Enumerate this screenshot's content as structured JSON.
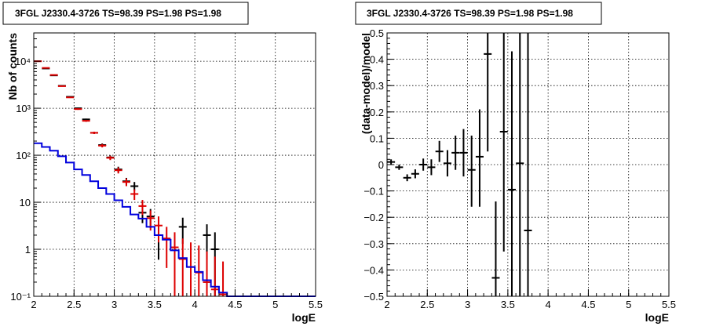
{
  "colors": {
    "black": "#000000",
    "red": "#dd0000",
    "blue": "#0000dd",
    "grid": "#000000"
  },
  "chart_data": [
    {
      "type": "scatter",
      "title": "3FGL J2330.4-3726 TS=98.39 PS=1.98 PS=1.98",
      "xlabel": "logE",
      "ylabel": "Nb of counts",
      "xlim": [
        2,
        5.5
      ],
      "ylim": [
        0.1,
        40000
      ],
      "yscale": "log",
      "grid": true,
      "x_ticks": [
        {
          "v": 2,
          "label": "2"
        },
        {
          "v": 2.5,
          "label": "2.5"
        },
        {
          "v": 3,
          "label": "3"
        },
        {
          "v": 3.5,
          "label": "3.5"
        },
        {
          "v": 4,
          "label": "4"
        },
        {
          "v": 4.5,
          "label": "4.5"
        },
        {
          "v": 5,
          "label": "5"
        },
        {
          "v": 5.5,
          "label": "5.5"
        }
      ],
      "y_ticks": [
        {
          "v": 0.1,
          "label": "10⁻¹"
        },
        {
          "v": 1,
          "label": "1"
        },
        {
          "v": 10,
          "label": "10"
        },
        {
          "v": 100,
          "label": "10²"
        },
        {
          "v": 1000,
          "label": "10³"
        },
        {
          "v": 10000,
          "label": "10⁴"
        }
      ],
      "series": [
        {
          "color": "#000000",
          "points": [
            {
              "x": 2.05,
              "y": 10000,
              "ylo": 9900,
              "yhi": 10100
            },
            {
              "x": 2.15,
              "y": 7000,
              "ylo": 6900,
              "yhi": 7100
            },
            {
              "x": 2.25,
              "y": 5000,
              "ylo": 4930,
              "yhi": 5070
            },
            {
              "x": 2.35,
              "y": 3000,
              "ylo": 2950,
              "yhi": 3050
            },
            {
              "x": 2.45,
              "y": 1750,
              "ylo": 1710,
              "yhi": 1790
            },
            {
              "x": 2.55,
              "y": 1000,
              "ylo": 970,
              "yhi": 1030
            },
            {
              "x": 2.65,
              "y": 580,
              "ylo": 560,
              "yhi": 600
            },
            {
              "x": 2.75,
              "y": 300,
              "ylo": 283,
              "yhi": 317
            },
            {
              "x": 2.85,
              "y": 165,
              "ylo": 152,
              "yhi": 178
            },
            {
              "x": 2.95,
              "y": 90,
              "ylo": 81,
              "yhi": 99
            },
            {
              "x": 3.05,
              "y": 50,
              "ylo": 43,
              "yhi": 57
            },
            {
              "x": 3.15,
              "y": 28,
              "ylo": 23,
              "yhi": 33
            },
            {
              "x": 3.25,
              "y": 22,
              "ylo": 17.5,
              "yhi": 27
            },
            {
              "x": 3.35,
              "y": 6,
              "ylo": 3.6,
              "yhi": 8.4
            },
            {
              "x": 3.45,
              "y": 5,
              "ylo": 2.8,
              "yhi": 7.2
            },
            {
              "x": 3.55,
              "y": 2,
              "ylo": 0.6,
              "yhi": 3.4
            },
            {
              "x": 3.85,
              "y": 3,
              "ylo": 1.3,
              "yhi": 4.7
            },
            {
              "x": 4.15,
              "y": 2,
              "ylo": 0.6,
              "yhi": 3.4
            },
            {
              "x": 4.25,
              "y": 1,
              "ylo": 0.1,
              "yhi": 2.3
            }
          ]
        },
        {
          "color": "#dd0000",
          "points": [
            {
              "x": 2.05,
              "y": 10000,
              "ylo": 9850,
              "yhi": 10150
            },
            {
              "x": 2.15,
              "y": 7200,
              "ylo": 7080,
              "yhi": 7320
            },
            {
              "x": 2.25,
              "y": 5100,
              "ylo": 5000,
              "yhi": 5200
            },
            {
              "x": 2.35,
              "y": 2950,
              "ylo": 2880,
              "yhi": 3020
            },
            {
              "x": 2.45,
              "y": 1700,
              "ylo": 1650,
              "yhi": 1750
            },
            {
              "x": 2.55,
              "y": 960,
              "ylo": 925,
              "yhi": 995
            },
            {
              "x": 2.65,
              "y": 540,
              "ylo": 515,
              "yhi": 565
            },
            {
              "x": 2.75,
              "y": 300,
              "ylo": 283,
              "yhi": 317
            },
            {
              "x": 2.85,
              "y": 160,
              "ylo": 147,
              "yhi": 173
            },
            {
              "x": 2.95,
              "y": 88,
              "ylo": 79,
              "yhi": 97
            },
            {
              "x": 3.05,
              "y": 48,
              "ylo": 41,
              "yhi": 55
            },
            {
              "x": 3.15,
              "y": 27,
              "ylo": 22,
              "yhi": 32
            },
            {
              "x": 3.25,
              "y": 15,
              "ylo": 11.2,
              "yhi": 18.8
            },
            {
              "x": 3.35,
              "y": 8.3,
              "ylo": 5.4,
              "yhi": 11.2
            },
            {
              "x": 3.45,
              "y": 4.6,
              "ylo": 2.5,
              "yhi": 6.7
            },
            {
              "x": 3.55,
              "y": 3.2,
              "ylo": 1.4,
              "yhi": 5
            },
            {
              "x": 3.65,
              "y": 1.7,
              "ylo": 0.4,
              "yhi": 3
            },
            {
              "x": 3.75,
              "y": 1.1,
              "ylo": 0.1,
              "yhi": 2.3
            },
            {
              "x": 3.85,
              "y": 0.62,
              "ylo": 0.1,
              "yhi": 1.7
            },
            {
              "x": 3.95,
              "y": 0.42,
              "ylo": 0.1,
              "yhi": 1.4
            },
            {
              "x": 4.05,
              "y": 0.32,
              "ylo": 0.1,
              "yhi": 1.2
            },
            {
              "x": 4.15,
              "y": 0.2,
              "ylo": 0.1,
              "yhi": 0.9
            },
            {
              "x": 4.25,
              "y": 0.14,
              "ylo": 0.1,
              "yhi": 0.7
            },
            {
              "x": 4.35,
              "y": 0.11,
              "ylo": 0.1,
              "yhi": 0.55
            }
          ]
        },
        {
          "color": "#0000dd",
          "type": "step",
          "edges": [
            2.0,
            2.1,
            2.2,
            2.3,
            2.4,
            2.5,
            2.6,
            2.7,
            2.8,
            2.9,
            3.0,
            3.1,
            3.2,
            3.3,
            3.4,
            3.5,
            3.6,
            3.7,
            3.8,
            3.9,
            4.0,
            4.1,
            4.2,
            4.3,
            4.4,
            4.5,
            5.5
          ],
          "values": [
            180,
            150,
            125,
            95,
            70,
            50,
            38,
            28,
            20,
            15,
            11,
            8,
            5.5,
            4.5,
            3,
            2,
            1.6,
            0.95,
            0.65,
            0.42,
            0.33,
            0.22,
            0.16,
            0.12,
            0.1,
            0.1
          ]
        }
      ]
    },
    {
      "type": "scatter",
      "title": "3FGL J2330.4-3726 TS=98.39 PS=1.98 PS=1.98",
      "xlabel": "logE",
      "ylabel": "(data-model)/model",
      "xlim": [
        2,
        5.5
      ],
      "ylim": [
        -0.5,
        0.5
      ],
      "grid": true,
      "x_ticks": [
        {
          "v": 2,
          "label": "2"
        },
        {
          "v": 2.5,
          "label": "2.5"
        },
        {
          "v": 3,
          "label": "3"
        },
        {
          "v": 3.5,
          "label": "3.5"
        },
        {
          "v": 4,
          "label": "4"
        },
        {
          "v": 4.5,
          "label": "4.5"
        },
        {
          "v": 5,
          "label": "5"
        },
        {
          "v": 5.5,
          "label": "5.5"
        }
      ],
      "y_ticks": [
        {
          "v": -0.5,
          "label": "−0.5"
        },
        {
          "v": -0.4,
          "label": "−0.4"
        },
        {
          "v": -0.3,
          "label": "−0.3"
        },
        {
          "v": -0.2,
          "label": "−0.2"
        },
        {
          "v": -0.1,
          "label": "−0.1"
        },
        {
          "v": 0,
          "label": "0"
        },
        {
          "v": 0.1,
          "label": "0.1"
        },
        {
          "v": 0.2,
          "label": "0.2"
        },
        {
          "v": 0.3,
          "label": "0.3"
        },
        {
          "v": 0.4,
          "label": "0.4"
        },
        {
          "v": 0.5,
          "label": "0.5"
        }
      ],
      "series": [
        {
          "color": "#000000",
          "points": [
            {
              "x": 2.05,
              "y": 0.01,
              "ylo": 0.0,
              "yhi": 0.02
            },
            {
              "x": 2.15,
              "y": -0.01,
              "ylo": -0.02,
              "yhi": 0.0
            },
            {
              "x": 2.25,
              "y": -0.05,
              "ylo": -0.063,
              "yhi": -0.037
            },
            {
              "x": 2.35,
              "y": -0.035,
              "ylo": -0.052,
              "yhi": -0.018
            },
            {
              "x": 2.45,
              "y": 0.0,
              "ylo": -0.023,
              "yhi": 0.023
            },
            {
              "x": 2.55,
              "y": -0.01,
              "ylo": -0.04,
              "yhi": 0.02
            },
            {
              "x": 2.65,
              "y": 0.05,
              "ylo": 0.01,
              "yhi": 0.09
            },
            {
              "x": 2.75,
              "y": 0.005,
              "ylo": -0.045,
              "yhi": 0.055
            },
            {
              "x": 2.85,
              "y": 0.045,
              "ylo": -0.02,
              "yhi": 0.11
            },
            {
              "x": 2.95,
              "y": 0.045,
              "ylo": -0.045,
              "yhi": 0.135
            },
            {
              "x": 3.05,
              "y": -0.02,
              "ylo": -0.16,
              "yhi": 0.11
            },
            {
              "x": 3.15,
              "y": 0.03,
              "ylo": -0.16,
              "yhi": 0.21
            },
            {
              "x": 3.25,
              "y": 0.42,
              "ylo": 0.05,
              "yhi": 0.5
            },
            {
              "x": 3.35,
              "y": -0.43,
              "ylo": -0.5,
              "yhi": -0.14
            },
            {
              "x": 3.45,
              "y": 0.125,
              "ylo": -0.33,
              "yhi": 0.5
            },
            {
              "x": 3.55,
              "y": -0.095,
              "ylo": -0.5,
              "yhi": 0.43
            },
            {
              "x": 3.65,
              "y": 0.005,
              "ylo": -0.5,
              "yhi": 0.5
            },
            {
              "x": 3.75,
              "y": -0.25,
              "ylo": -0.5,
              "yhi": 0.5
            }
          ]
        }
      ]
    }
  ]
}
